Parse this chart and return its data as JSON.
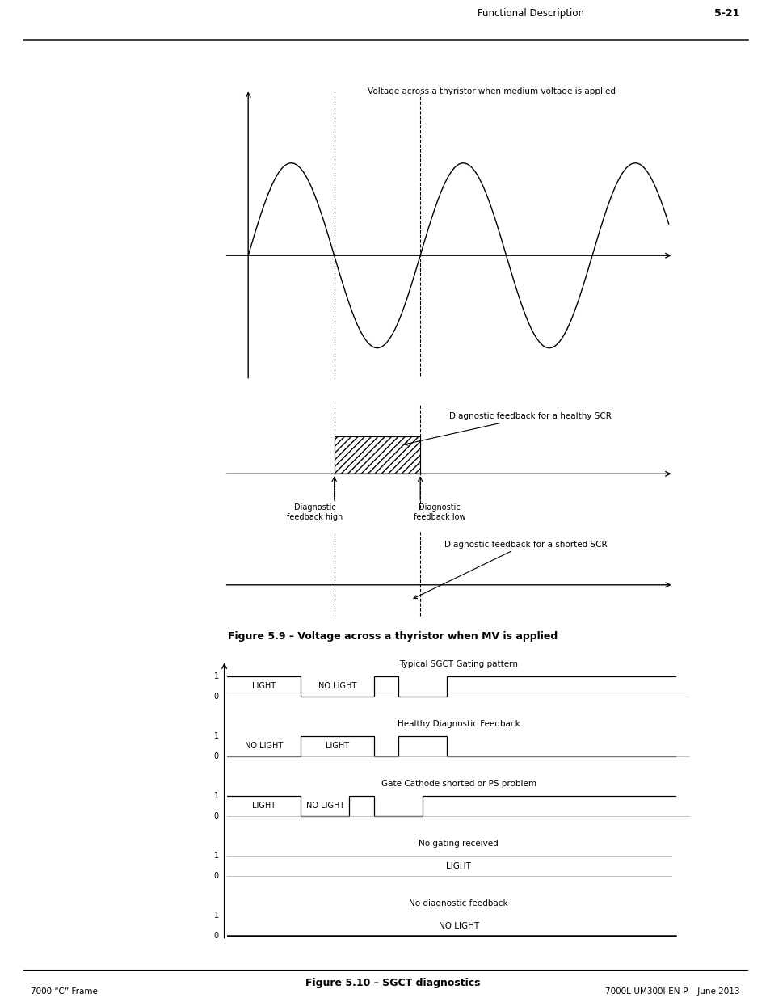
{
  "page_title_left": "Functional Description",
  "page_title_right": "5-21",
  "footer_left": "7000 “C” Frame",
  "footer_right": "7000L-UM300I-EN-P – June 2013",
  "fig1_title": "Voltage across a thyristor when medium voltage is applied",
  "fig1_caption": "Figure 5.9 – Voltage across a thyristor when MV is applied",
  "fig1_label_healthy": "Diagnostic feedback for a healthy SCR",
  "fig1_label_shorted": "Diagnostic feedback for a shorted SCR",
  "fig1_label_high": "Diagnostic\nfeedback high",
  "fig1_label_low": "Diagnostic\nfeedback low",
  "fig2_caption": "Figure 5.10 – SGCT diagnostics",
  "sgct_rows": [
    {
      "title": "Typical SGCT Gating pattern",
      "signal": [
        1,
        1,
        1,
        0,
        0,
        0,
        1,
        0,
        0,
        1,
        1,
        1,
        1,
        1,
        1,
        1
      ],
      "labels": [
        "LIGHT",
        "NO LIGHT",
        "",
        ""
      ]
    },
    {
      "title": "Healthy Diagnostic Feedback",
      "signal": [
        0,
        0,
        0,
        1,
        1,
        1,
        0,
        1,
        1,
        0,
        0,
        0,
        0,
        0,
        0,
        0
      ],
      "labels": [
        "NO LIGHT",
        "LIGHT",
        "",
        ""
      ]
    },
    {
      "title": "Gate Cathode shorted or PS problem",
      "signal": [
        1,
        1,
        1,
        0,
        0,
        1,
        0,
        0,
        1,
        1,
        1,
        1,
        1,
        1,
        1,
        1
      ],
      "labels": [
        "LIGHT",
        "NO LIGHT",
        "",
        ""
      ]
    },
    {
      "title": "No gating received",
      "signal": null,
      "label_center": "LIGHT",
      "flat_level": 1
    },
    {
      "title": "No diagnostic feedback",
      "signal": null,
      "label_center": "NO LIGHT",
      "flat_level": 0
    }
  ]
}
